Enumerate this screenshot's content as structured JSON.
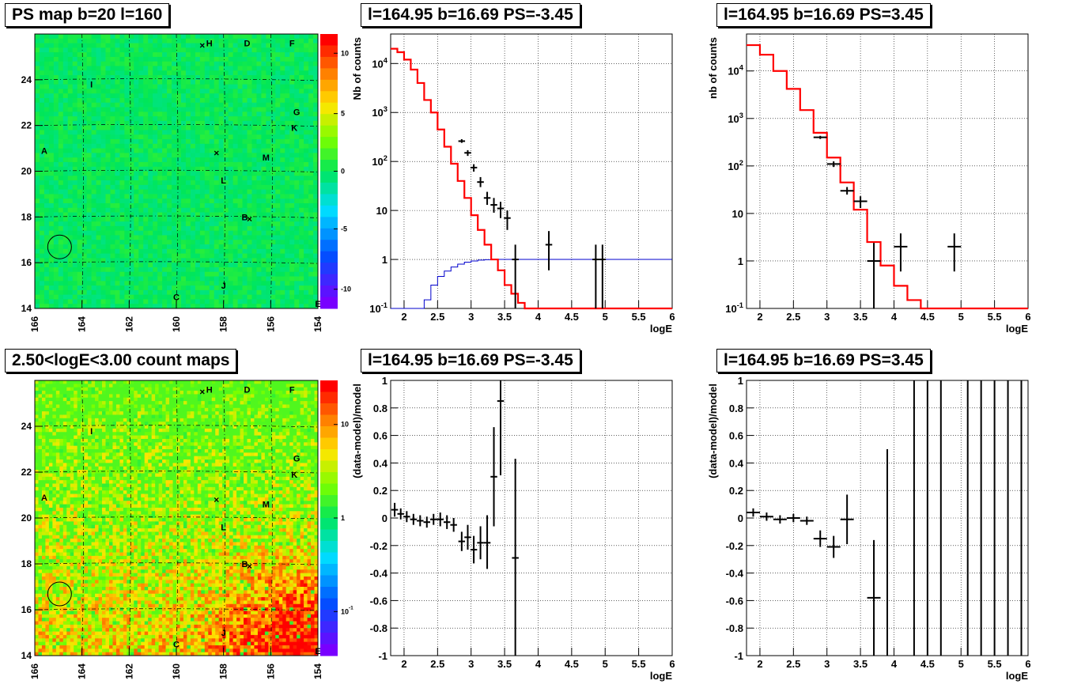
{
  "titles": {
    "map_top": "PS map b=20 l=160",
    "spec_neg_top": "l=164.95 b=16.69 PS=-3.45",
    "spec_pos_top": "l=164.95 b=16.69 PS=3.45",
    "map_bottom": "2.50<logE<3.00 count maps",
    "res_neg_bottom": "l=164.95 b=16.69 PS=-3.45",
    "res_pos_bottom": "l=164.95 b=16.69 PS=3.45"
  },
  "colors": {
    "model_line": "#ff0000",
    "efficiency_line": "#0000cc",
    "data_points": "#000000",
    "grid": "#000000"
  },
  "chart_data": [
    {
      "id": "map_top",
      "type": "heatmap",
      "title": "PS map b=20 l=160",
      "xlim": [
        166,
        154
      ],
      "ylim": [
        14,
        26
      ],
      "xticks": [
        166,
        164,
        162,
        160,
        158,
        156,
        154
      ],
      "yticks": [
        14,
        16,
        18,
        20,
        22,
        24
      ],
      "colorbar_ticks": [
        "10",
        "5",
        "0",
        "-5",
        "-10"
      ],
      "colorbar_range": [
        -15,
        15
      ],
      "source_labels": [
        {
          "name": "H",
          "l": 158.6,
          "b": 25.6
        },
        {
          "name": "D",
          "l": 157.0,
          "b": 25.6
        },
        {
          "name": "F",
          "l": 155.1,
          "b": 25.6
        },
        {
          "name": "I",
          "l": 163.6,
          "b": 23.8
        },
        {
          "name": "G",
          "l": 154.9,
          "b": 22.6
        },
        {
          "name": "K",
          "l": 155.0,
          "b": 21.9
        },
        {
          "name": "A",
          "l": 165.6,
          "b": 20.9
        },
        {
          "name": "M",
          "l": 156.2,
          "b": 20.6
        },
        {
          "name": "L",
          "l": 158.0,
          "b": 19.6
        },
        {
          "name": "B",
          "l": 157.1,
          "b": 18.0
        },
        {
          "name": "J",
          "l": 158.0,
          "b": 15.0
        },
        {
          "name": "C",
          "l": 160.0,
          "b": 14.5
        },
        {
          "name": "E",
          "l": 154.0,
          "b": 14.2
        }
      ],
      "crosses": [
        {
          "l": 158.9,
          "b": 25.5
        },
        {
          "l": 158.3,
          "b": 20.8
        },
        {
          "l": 156.9,
          "b": 17.9
        }
      ],
      "circle": {
        "l": 164.95,
        "b": 16.69
      }
    },
    {
      "id": "spec_neg_top",
      "type": "line",
      "title": "l=164.95 b=16.69 PS=-3.45",
      "xlabel": "logE",
      "ylabel": "Nb of counts",
      "xlim": [
        1.8,
        6
      ],
      "ylim": [
        0.1,
        40000
      ],
      "yscale": "log",
      "xticks": [
        "2",
        "2.5",
        "3",
        "3.5",
        "4",
        "4.5",
        "5",
        "5.5",
        "6"
      ],
      "yticks": [
        "10^-1",
        "1",
        "10",
        "10^2",
        "10^3",
        "10^4"
      ],
      "grid": true,
      "model_steps": {
        "edges": [
          1.8,
          1.9,
          2.0,
          2.1,
          2.2,
          2.3,
          2.4,
          2.5,
          2.6,
          2.7,
          2.8,
          2.9,
          3.0,
          3.1,
          3.2,
          3.3,
          3.4,
          3.5,
          3.6,
          3.7,
          3.8,
          3.9,
          4.0,
          4.1,
          4.2,
          6.0
        ],
        "values": [
          20000,
          17000,
          12000,
          7500,
          4000,
          1800,
          1000,
          450,
          200,
          90,
          40,
          18,
          8,
          4,
          2,
          1,
          0.6,
          0.3,
          0.2,
          0.13,
          0.1,
          0.1,
          0.1,
          0.1,
          0.1
        ]
      },
      "efficiency_steps": {
        "edges": [
          1.8,
          2.3,
          2.4,
          2.5,
          2.6,
          2.7,
          2.8,
          2.9,
          3.0,
          3.1,
          3.2,
          3.3,
          3.4,
          3.5,
          3.6,
          3.7,
          6.0
        ],
        "values": [
          0.1,
          0.15,
          0.3,
          0.45,
          0.58,
          0.7,
          0.8,
          0.88,
          0.93,
          0.97,
          0.99,
          1.0,
          1.0,
          1.0,
          1.0,
          1.0
        ]
      },
      "points": [
        {
          "x": 2.86,
          "y": 260,
          "xerr": 0.05,
          "lo": 240,
          "hi": 285
        },
        {
          "x": 2.95,
          "y": 150,
          "xerr": 0.05,
          "lo": 130,
          "hi": 170
        },
        {
          "x": 3.04,
          "y": 75,
          "xerr": 0.05,
          "lo": 62,
          "hi": 88
        },
        {
          "x": 3.14,
          "y": 38,
          "xerr": 0.05,
          "lo": 30,
          "hi": 48
        },
        {
          "x": 3.24,
          "y": 18,
          "xerr": 0.05,
          "lo": 13,
          "hi": 24
        },
        {
          "x": 3.34,
          "y": 13,
          "xerr": 0.05,
          "lo": 9,
          "hi": 18
        },
        {
          "x": 3.44,
          "y": 11,
          "xerr": 0.05,
          "lo": 7,
          "hi": 15
        },
        {
          "x": 3.54,
          "y": 7,
          "xerr": 0.05,
          "lo": 4,
          "hi": 10
        },
        {
          "x": 3.66,
          "y": 1,
          "xerr": 0.05,
          "lo": 0.1,
          "hi": 2
        },
        {
          "x": 4.16,
          "y": 2,
          "xerr": 0.05,
          "lo": 0.6,
          "hi": 3.8
        },
        {
          "x": 4.86,
          "y": 1,
          "xerr": 0.05,
          "lo": 0.1,
          "hi": 2
        },
        {
          "x": 4.96,
          "y": 1,
          "xerr": 0.05,
          "lo": 0.1,
          "hi": 2
        }
      ]
    },
    {
      "id": "spec_pos_top",
      "type": "line",
      "title": "l=164.95 b=16.69 PS=3.45",
      "xlabel": "logE",
      "ylabel": "nb of counts",
      "xlim": [
        1.8,
        6
      ],
      "ylim": [
        0.1,
        60000
      ],
      "yscale": "log",
      "xticks": [
        "2",
        "2.5",
        "3",
        "3.5",
        "4",
        "4.5",
        "5",
        "5.5",
        "6"
      ],
      "yticks": [
        "10^-1",
        "1",
        "10",
        "10^2",
        "10^3",
        "10^4"
      ],
      "grid": true,
      "model_steps": {
        "edges": [
          1.8,
          2.0,
          2.2,
          2.4,
          2.6,
          2.8,
          3.0,
          3.2,
          3.4,
          3.6,
          3.8,
          4.0,
          4.2,
          4.4,
          4.6,
          6.0
        ],
        "values": [
          35000,
          22000,
          10000,
          4200,
          1500,
          500,
          150,
          45,
          12,
          2.5,
          0.8,
          0.3,
          0.15,
          0.1,
          0.1
        ]
      },
      "points": [
        {
          "x": 2.9,
          "y": 400,
          "xerr": 0.1,
          "lo": 370,
          "hi": 430
        },
        {
          "x": 3.1,
          "y": 110,
          "xerr": 0.1,
          "lo": 95,
          "hi": 125
        },
        {
          "x": 3.3,
          "y": 30,
          "xerr": 0.1,
          "lo": 25,
          "hi": 36
        },
        {
          "x": 3.5,
          "y": 18,
          "xerr": 0.1,
          "lo": 13,
          "hi": 23
        },
        {
          "x": 3.7,
          "y": 1,
          "xerr": 0.1,
          "lo": 0.1,
          "hi": 2.4
        },
        {
          "x": 4.1,
          "y": 2,
          "xerr": 0.1,
          "lo": 0.6,
          "hi": 3.8
        },
        {
          "x": 4.9,
          "y": 2,
          "xerr": 0.1,
          "lo": 0.6,
          "hi": 3.8
        }
      ]
    },
    {
      "id": "map_bottom",
      "type": "heatmap",
      "title": "2.50<logE<3.00 count maps",
      "xlim": [
        166,
        154
      ],
      "ylim": [
        14,
        26
      ],
      "xticks": [
        166,
        164,
        162,
        160,
        158,
        156,
        154
      ],
      "yticks": [
        14,
        16,
        18,
        20,
        22,
        24
      ],
      "colorbar_ticks": [
        "10",
        "1",
        "10^-1"
      ],
      "colorbar_scale": "log",
      "source_labels": [
        {
          "name": "H",
          "l": 158.6,
          "b": 25.6
        },
        {
          "name": "D",
          "l": 157.0,
          "b": 25.6
        },
        {
          "name": "F",
          "l": 155.1,
          "b": 25.6
        },
        {
          "name": "I",
          "l": 163.6,
          "b": 23.8
        },
        {
          "name": "G",
          "l": 154.9,
          "b": 22.6
        },
        {
          "name": "K",
          "l": 155.0,
          "b": 21.9
        },
        {
          "name": "A",
          "l": 165.6,
          "b": 20.9
        },
        {
          "name": "M",
          "l": 156.2,
          "b": 20.6
        },
        {
          "name": "L",
          "l": 158.0,
          "b": 19.6
        },
        {
          "name": "B",
          "l": 157.1,
          "b": 18.0
        },
        {
          "name": "J",
          "l": 158.0,
          "b": 15.0
        },
        {
          "name": "C",
          "l": 160.0,
          "b": 14.5
        },
        {
          "name": "E",
          "l": 154.0,
          "b": 14.2
        }
      ],
      "crosses": [
        {
          "l": 158.9,
          "b": 25.5
        },
        {
          "l": 158.3,
          "b": 20.8
        },
        {
          "l": 156.9,
          "b": 17.9
        }
      ],
      "circle": {
        "l": 164.95,
        "b": 16.69
      }
    },
    {
      "id": "res_neg_bottom",
      "type": "scatter",
      "title": "l=164.95 b=16.69 PS=-3.45",
      "xlabel": "logE",
      "ylabel": "(data-model)/model",
      "xlim": [
        1.8,
        6
      ],
      "ylim": [
        -1,
        1
      ],
      "xticks": [
        "2",
        "2.5",
        "3",
        "3.5",
        "4",
        "4.5",
        "5",
        "5.5",
        "6"
      ],
      "yticks": [
        "-1",
        "-0.8",
        "-0.6",
        "-0.4",
        "-0.2",
        "0",
        "0.2",
        "0.4",
        "0.6",
        "0.8",
        "1"
      ],
      "grid": true,
      "points": [
        {
          "x": 1.86,
          "y": 0.06,
          "xerr": 0.05,
          "lo": 0.01,
          "hi": 0.11
        },
        {
          "x": 1.95,
          "y": 0.03,
          "xerr": 0.05,
          "lo": -0.01,
          "hi": 0.07
        },
        {
          "x": 2.04,
          "y": 0.01,
          "xerr": 0.05,
          "lo": -0.03,
          "hi": 0.05
        },
        {
          "x": 2.14,
          "y": -0.01,
          "xerr": 0.05,
          "lo": -0.05,
          "hi": 0.03
        },
        {
          "x": 2.24,
          "y": -0.02,
          "xerr": 0.05,
          "lo": -0.06,
          "hi": 0.02
        },
        {
          "x": 2.34,
          "y": -0.03,
          "xerr": 0.05,
          "lo": -0.07,
          "hi": 0.01
        },
        {
          "x": 2.44,
          "y": -0.01,
          "xerr": 0.05,
          "lo": -0.05,
          "hi": 0.03
        },
        {
          "x": 2.54,
          "y": -0.01,
          "xerr": 0.05,
          "lo": -0.06,
          "hi": 0.04
        },
        {
          "x": 2.64,
          "y": -0.03,
          "xerr": 0.05,
          "lo": -0.08,
          "hi": 0.02
        },
        {
          "x": 2.74,
          "y": -0.05,
          "xerr": 0.05,
          "lo": -0.1,
          "hi": 0.0
        },
        {
          "x": 2.86,
          "y": -0.17,
          "xerr": 0.05,
          "lo": -0.24,
          "hi": -0.1
        },
        {
          "x": 2.95,
          "y": -0.14,
          "xerr": 0.05,
          "lo": -0.23,
          "hi": -0.05
        },
        {
          "x": 3.04,
          "y": -0.23,
          "xerr": 0.05,
          "lo": -0.33,
          "hi": -0.13
        },
        {
          "x": 3.14,
          "y": -0.18,
          "xerr": 0.05,
          "lo": -0.3,
          "hi": -0.06
        },
        {
          "x": 3.24,
          "y": -0.18,
          "xerr": 0.05,
          "lo": -0.37,
          "hi": 0.02
        },
        {
          "x": 3.34,
          "y": 0.3,
          "xerr": 0.05,
          "lo": -0.06,
          "hi": 0.66
        },
        {
          "x": 3.44,
          "y": 0.85,
          "xerr": 0.05,
          "lo": 0.31,
          "hi": 1.0
        },
        {
          "x": 3.66,
          "y": -0.29,
          "xerr": 0.05,
          "lo": -1.0,
          "hi": 0.43
        }
      ]
    },
    {
      "id": "res_pos_bottom",
      "type": "scatter",
      "title": "l=164.95 b=16.69 PS=3.45",
      "xlabel": "logE",
      "ylabel": "(data-model)/model",
      "xlim": [
        1.8,
        6
      ],
      "ylim": [
        -1,
        1
      ],
      "xticks": [
        "2",
        "2.5",
        "3",
        "3.5",
        "4",
        "4.5",
        "5",
        "5.5",
        "6"
      ],
      "yticks": [
        "-1",
        "-0.8",
        "-0.6",
        "-0.4",
        "-0.2",
        "0",
        "0.2",
        "0.4",
        "0.6",
        "0.8",
        "1"
      ],
      "grid": true,
      "points": [
        {
          "x": 1.9,
          "y": 0.04,
          "xerr": 0.1,
          "lo": 0.01,
          "hi": 0.07
        },
        {
          "x": 2.1,
          "y": 0.01,
          "xerr": 0.1,
          "lo": -0.02,
          "hi": 0.04
        },
        {
          "x": 2.3,
          "y": -0.01,
          "xerr": 0.1,
          "lo": -0.04,
          "hi": 0.02
        },
        {
          "x": 2.5,
          "y": 0.0,
          "xerr": 0.1,
          "lo": -0.03,
          "hi": 0.03
        },
        {
          "x": 2.7,
          "y": -0.02,
          "xerr": 0.1,
          "lo": -0.05,
          "hi": 0.01
        },
        {
          "x": 2.9,
          "y": -0.15,
          "xerr": 0.1,
          "lo": -0.21,
          "hi": -0.09
        },
        {
          "x": 3.1,
          "y": -0.21,
          "xerr": 0.1,
          "lo": -0.29,
          "hi": -0.13
        },
        {
          "x": 3.3,
          "y": -0.01,
          "xerr": 0.1,
          "lo": -0.19,
          "hi": 0.17
        },
        {
          "x": 3.7,
          "y": -0.58,
          "xerr": 0.1,
          "lo": -1.0,
          "hi": -0.16
        },
        {
          "x": 3.9,
          "y": -1.0,
          "xerr": 0.0,
          "lo": -1.0,
          "hi": 0.5
        },
        {
          "x": 4.3,
          "y": 1.0,
          "xerr": 0.0,
          "lo": -1.0,
          "hi": 1.0
        },
        {
          "x": 4.5,
          "y": 1.0,
          "xerr": 0.0,
          "lo": -1.0,
          "hi": 1.0
        },
        {
          "x": 4.7,
          "y": 1.0,
          "xerr": 0.0,
          "lo": -1.0,
          "hi": 1.0
        },
        {
          "x": 5.1,
          "y": 1.0,
          "xerr": 0.0,
          "lo": -1.0,
          "hi": 1.0
        },
        {
          "x": 5.3,
          "y": 1.0,
          "xerr": 0.0,
          "lo": -1.0,
          "hi": 1.0
        },
        {
          "x": 5.5,
          "y": 1.0,
          "xerr": 0.0,
          "lo": -1.0,
          "hi": 1.0
        },
        {
          "x": 5.7,
          "y": 1.0,
          "xerr": 0.0,
          "lo": -1.0,
          "hi": 1.0
        },
        {
          "x": 5.9,
          "y": 1.0,
          "xerr": 0.0,
          "lo": -1.0,
          "hi": 1.0
        }
      ]
    }
  ]
}
